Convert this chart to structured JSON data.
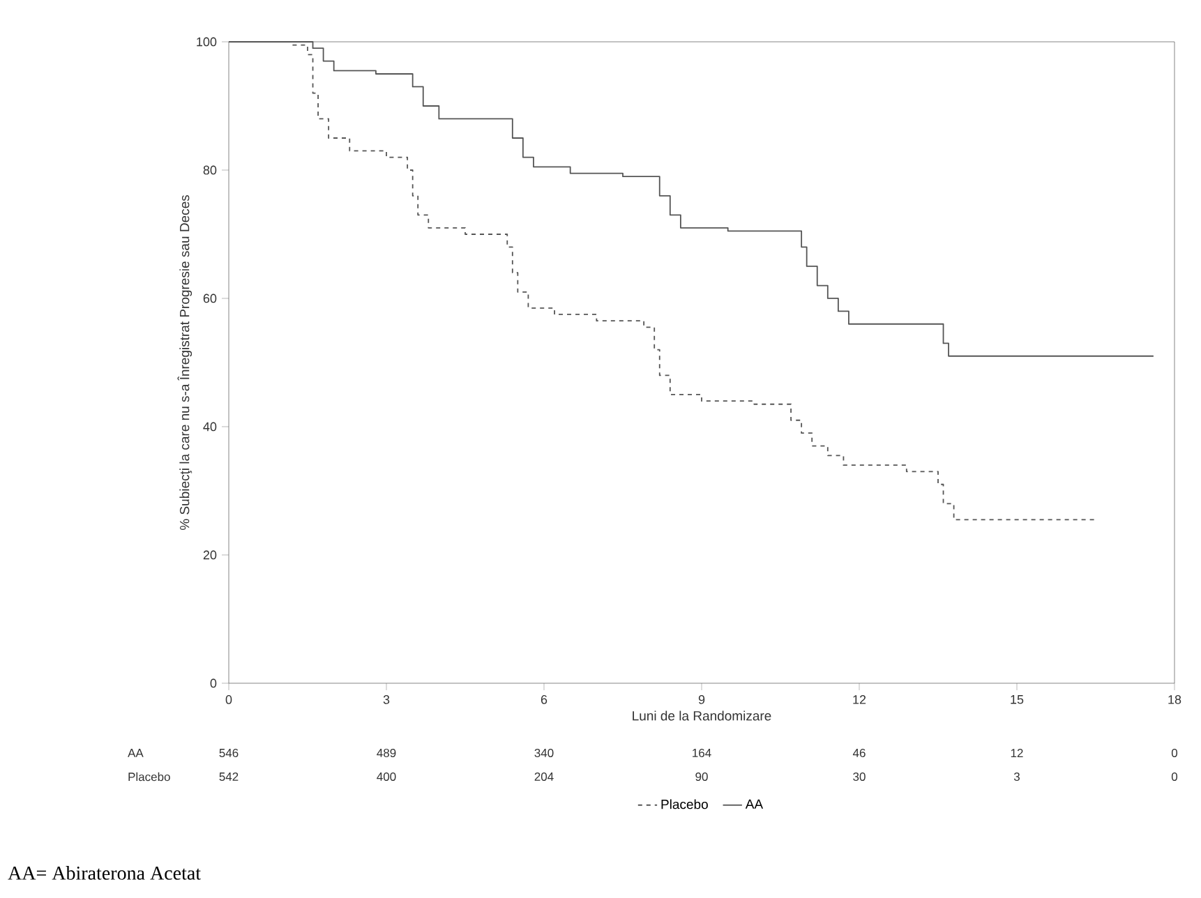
{
  "chart_data": {
    "type": "step",
    "xlabel": "Luni de la Randomizare",
    "ylabel": "% Subiecţi la care nu s-a Înregistrat  Progresie sau Deces",
    "xlim": [
      0,
      18
    ],
    "ylim": [
      0,
      100
    ],
    "xticks": [
      0,
      3,
      6,
      9,
      12,
      15,
      18
    ],
    "yticks": [
      0,
      20,
      40,
      60,
      80,
      100
    ],
    "legend": "bottom",
    "series": [
      {
        "name": "Placebo",
        "color": "#555555",
        "line_style": "dashed",
        "x": [
          0,
          1.2,
          1.5,
          1.6,
          1.7,
          1.9,
          2.3,
          3.0,
          3.4,
          3.5,
          3.6,
          3.8,
          4.5,
          5.3,
          5.4,
          5.5,
          5.7,
          6.2,
          7.0,
          7.9,
          8.1,
          8.2,
          8.4,
          9.0,
          10.0,
          10.7,
          10.9,
          11.1,
          11.4,
          11.7,
          12.9,
          13.5,
          13.6,
          13.8,
          16.5
        ],
        "values": [
          100,
          99.5,
          98,
          92,
          88,
          85,
          83,
          82,
          80,
          76,
          73,
          71,
          70,
          68,
          64,
          61,
          58.5,
          57.5,
          56.5,
          55.5,
          52,
          48,
          45,
          44,
          43.5,
          41,
          39,
          37,
          35.5,
          34,
          33,
          31,
          28,
          25.5,
          25.5
        ]
      },
      {
        "name": "AA",
        "color": "#555555",
        "line_style": "solid",
        "x": [
          0,
          1.6,
          1.8,
          2.0,
          2.8,
          3.5,
          3.7,
          4.0,
          5.4,
          5.6,
          5.8,
          6.5,
          7.5,
          8.2,
          8.4,
          8.6,
          9.5,
          10.9,
          11.0,
          11.2,
          11.4,
          11.6,
          11.8,
          13.6,
          13.7,
          17.6
        ],
        "values": [
          100,
          99,
          97,
          95.5,
          95,
          93,
          90,
          88,
          85,
          82,
          80.5,
          79.5,
          79,
          76,
          73,
          71,
          70.5,
          68,
          65,
          62,
          60,
          58,
          56,
          53,
          51,
          51
        ]
      }
    ],
    "annotations": [
      "AA",
      "546",
      "489",
      "340",
      "164",
      "46",
      "12",
      "0",
      "Placebo",
      "542",
      "400",
      "204",
      "90",
      "30",
      "3",
      "0",
      "AA= Abiraterona Acetat"
    ]
  }
}
